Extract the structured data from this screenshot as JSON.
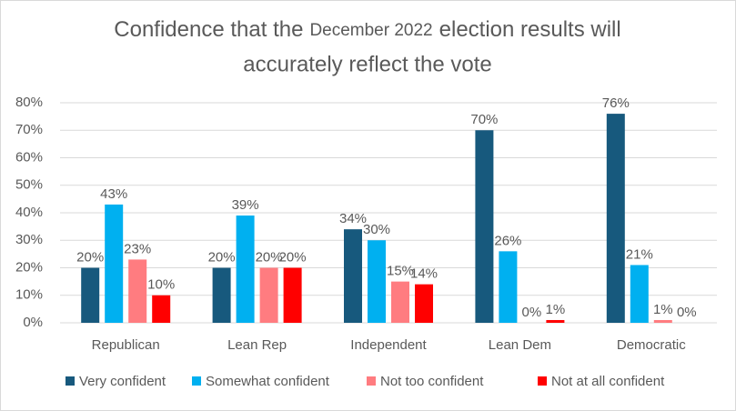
{
  "chart_data": {
    "type": "bar",
    "title": [
      "Confidence that the",
      "December 2022",
      "election results will",
      "accurately reflect the vote"
    ],
    "categories": [
      "Republican",
      "Lean Rep",
      "Independent",
      "Lean Dem",
      "Democratic"
    ],
    "series": [
      {
        "name": "Very confident",
        "color": "#17597d",
        "values": [
          20,
          20,
          34,
          70,
          76
        ],
        "value_labels": [
          "20%",
          "20%",
          "34%",
          "70%",
          "76%"
        ]
      },
      {
        "name": "Somewhat confident",
        "color": "#00b0f0",
        "values": [
          43,
          39,
          30,
          26,
          21
        ],
        "value_labels": [
          "43%",
          "39%",
          "30%",
          "26%",
          "21%"
        ]
      },
      {
        "name": "Not too confident",
        "color": "#ff7c80",
        "values": [
          23,
          20,
          15,
          0,
          1
        ],
        "value_labels": [
          "23%",
          "20%",
          "15%",
          "0%",
          "1%"
        ]
      },
      {
        "name": "Not at all confident",
        "color": "#ff0000",
        "values": [
          10,
          20,
          14,
          1,
          0
        ],
        "value_labels": [
          "10%",
          "20%",
          "14%",
          "1%",
          "0%"
        ]
      }
    ],
    "ylim": [
      0,
      80
    ],
    "yticks": [
      {
        "value": 0,
        "label": "0%"
      },
      {
        "value": 10,
        "label": "10%"
      },
      {
        "value": 20,
        "label": "20%"
      },
      {
        "value": 30,
        "label": "30%"
      },
      {
        "value": 40,
        "label": "40%"
      },
      {
        "value": 50,
        "label": "50%"
      },
      {
        "value": 60,
        "label": "60%"
      },
      {
        "value": 70,
        "label": "70%"
      },
      {
        "value": 80,
        "label": "80%"
      }
    ],
    "grid": true,
    "legend": "bottom"
  }
}
